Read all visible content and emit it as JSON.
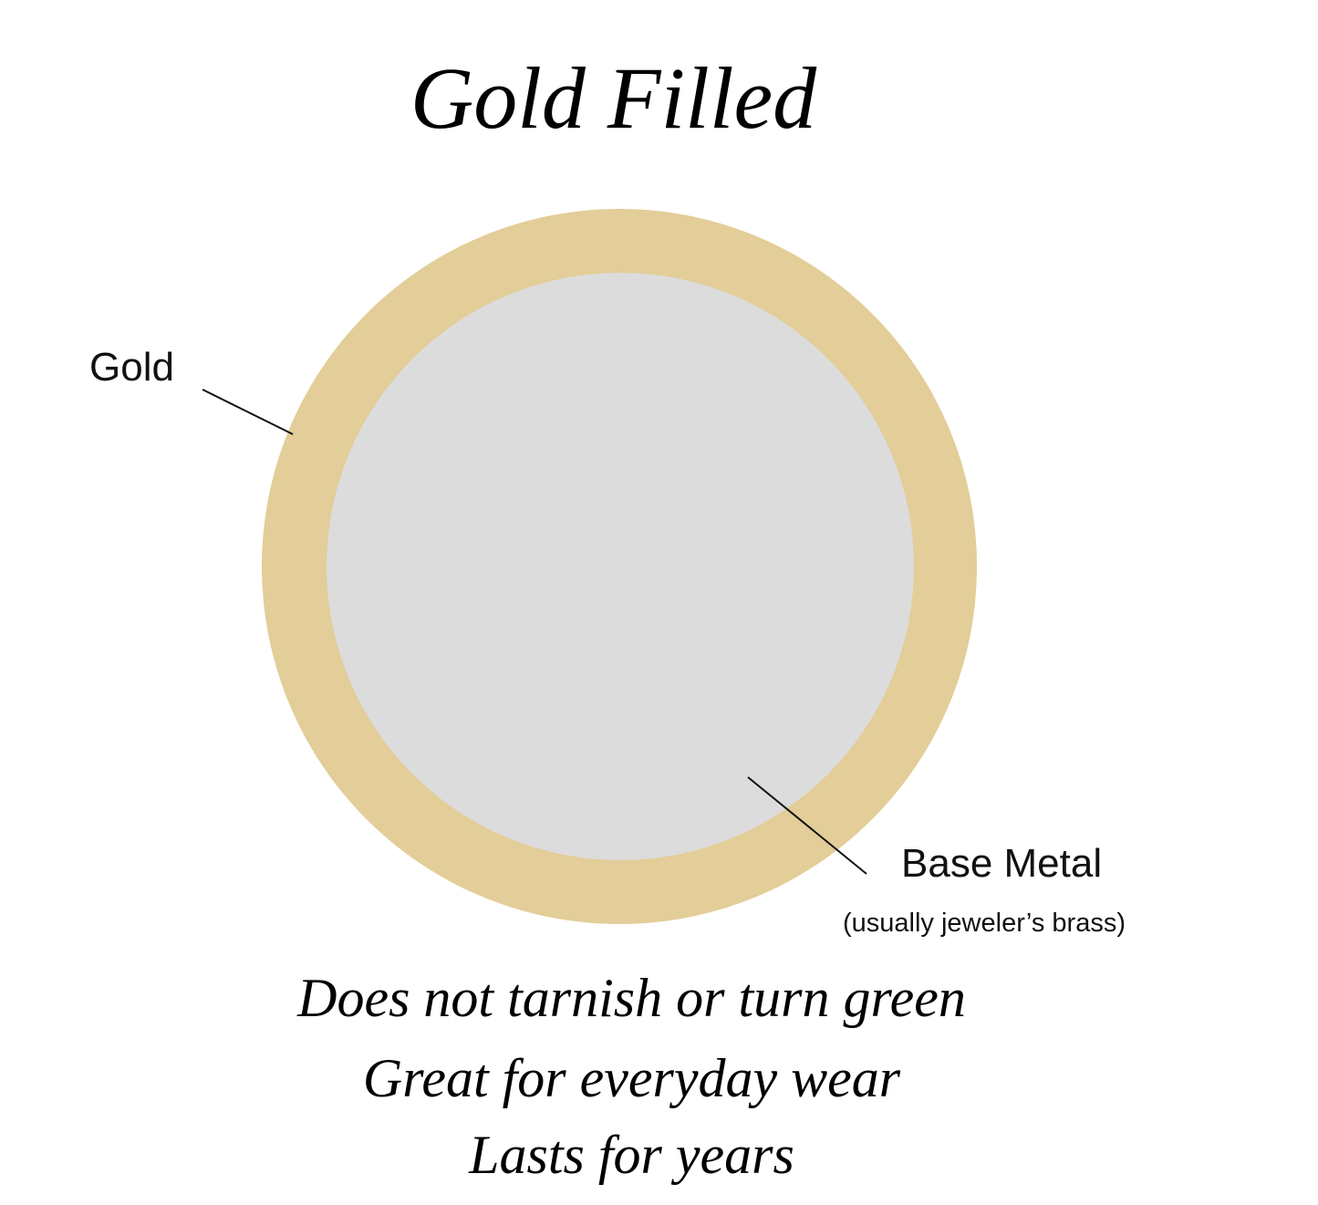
{
  "title": "Gold Filled",
  "labels": {
    "gold": "Gold",
    "base_metal": "Base Metal",
    "base_metal_note": "(usually jeweler’s brass)"
  },
  "features": [
    "Does not tarnish or turn green",
    "Great for everyday wear",
    "Lasts for years"
  ],
  "colors": {
    "gold_layer": "#e3cd98",
    "base_metal": "#dcdcdc"
  }
}
